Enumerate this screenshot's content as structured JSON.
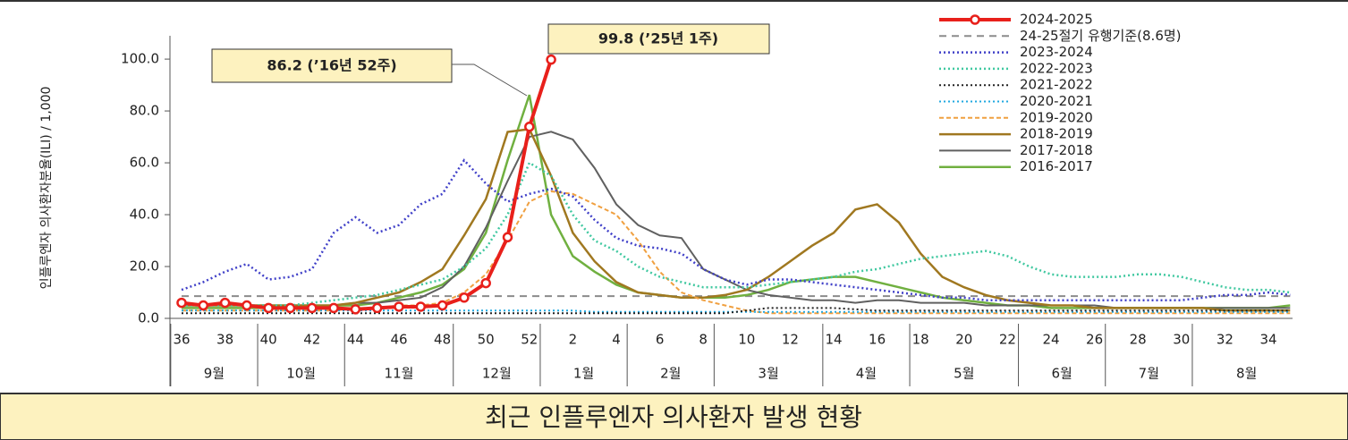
{
  "chart_data": {
    "type": "line",
    "title": "최근 인플루엔자 의사환자 발생 현황",
    "y_label": "인플루엔자 의사환자분율(ILI) / 1,000",
    "categories": [
      "36",
      null,
      "38",
      null,
      "40",
      null,
      "42",
      null,
      "44",
      null,
      "46",
      null,
      "48",
      null,
      "50",
      null,
      "52",
      null,
      "2",
      null,
      "4",
      null,
      "6",
      null,
      "8",
      null,
      "10",
      null,
      "12",
      null,
      "14",
      null,
      "16",
      null,
      "18",
      null,
      "20",
      null,
      "22",
      null,
      "24",
      null,
      "26",
      null,
      "28",
      null,
      "30",
      null,
      "32",
      null,
      "34",
      null
    ],
    "months": [
      "9월",
      "10월",
      "11월",
      "12월",
      "1월",
      "2월",
      "3월",
      "4월",
      "5월",
      "6월",
      "7월",
      "8월"
    ],
    "ylim": [
      0,
      109
    ],
    "yticks": [
      {
        "value": 0,
        "label": "0.0"
      },
      {
        "value": 20,
        "label": "20.0"
      },
      {
        "value": 40,
        "label": "40.0"
      },
      {
        "value": 60,
        "label": "60.0"
      },
      {
        "value": 80,
        "label": "80.0"
      },
      {
        "value": 100,
        "label": "100.0"
      }
    ],
    "threshold": {
      "name": "24-25절기 유행기준(8.6명)",
      "value": 8.6,
      "color": "#8c8c8c"
    },
    "annotations": [
      "86.2 (’16년 52주)",
      "99.8 (’25년 1주)"
    ],
    "series": [
      {
        "name": "2024-2025",
        "color": "#e8201b",
        "style": "solid",
        "width": 4,
        "marker": true,
        "values": [
          6,
          5,
          6,
          5,
          4,
          4,
          4,
          4,
          3.5,
          4,
          4.5,
          4.5,
          5,
          8,
          13.6,
          31.3,
          73.9,
          99.8,
          null,
          null,
          null,
          null,
          null,
          null,
          null,
          null,
          null,
          null,
          null,
          null,
          null,
          null,
          null,
          null,
          null,
          null,
          null,
          null,
          null,
          null,
          null,
          null,
          null,
          null,
          null,
          null,
          null,
          null,
          null,
          null,
          null,
          null
        ]
      },
      {
        "name": "2023-2024",
        "color": "#4040c8",
        "style": "dotted",
        "width": 2.5,
        "values": [
          11,
          14,
          18,
          21,
          15,
          16,
          19,
          33,
          39,
          33,
          36,
          44,
          48,
          61,
          52,
          45,
          48,
          50,
          47,
          38,
          31,
          28,
          27,
          25,
          19,
          15,
          13,
          15,
          15,
          14,
          13,
          12,
          11,
          10,
          9,
          8,
          8,
          7,
          7,
          7,
          7,
          7,
          7,
          7,
          7,
          7,
          7,
          8,
          9,
          9,
          10,
          9
        ]
      },
      {
        "name": "2022-2023",
        "color": "#40c8a0",
        "style": "dotted",
        "width": 2.5,
        "values": [
          5,
          5,
          5,
          5,
          5,
          5,
          6,
          7,
          8,
          9,
          11,
          13,
          15,
          20,
          27,
          40,
          60,
          55,
          40,
          30,
          26,
          20,
          16,
          14,
          12,
          12,
          12,
          13,
          14,
          15,
          16,
          18,
          19,
          21,
          23,
          24,
          25,
          26,
          24,
          20,
          17,
          16,
          16,
          16,
          17,
          17,
          16,
          14,
          12,
          11,
          11,
          10
        ]
      },
      {
        "name": "2021-2022",
        "color": "#222222",
        "style": "dotted",
        "width": 2,
        "values": [
          2,
          2,
          2,
          2,
          2,
          2,
          2,
          2,
          2,
          2,
          2,
          2,
          2,
          2,
          2,
          2,
          2,
          2,
          2,
          2,
          2,
          2,
          2,
          2,
          2,
          2,
          3,
          4,
          4,
          4,
          4,
          3.5,
          3,
          3,
          3,
          3,
          3,
          3,
          3,
          3,
          3,
          3,
          3,
          3,
          3,
          3,
          3,
          3,
          3,
          3,
          3,
          3
        ]
      },
      {
        "name": "2020-2021",
        "color": "#20a8e0",
        "style": "dotted",
        "width": 2,
        "values": [
          3,
          3,
          3,
          3,
          3,
          3,
          3,
          3,
          3,
          3,
          3,
          3,
          3,
          3,
          3,
          3,
          3,
          3,
          3,
          2.5,
          2.5,
          2.5,
          2.5,
          2.5,
          2.5,
          2.5,
          2.5,
          2.5,
          2.5,
          2.5,
          2.5,
          2.5,
          2.5,
          2.5,
          2.5,
          2.5,
          2.5,
          2.5,
          2.5,
          2.5,
          2.5,
          2.5,
          2.5,
          2.5,
          2.5,
          2.5,
          2.5,
          2.5,
          2.5,
          2.5,
          2.5,
          2.5
        ]
      },
      {
        "name": "2019-2020",
        "color": "#f0a040",
        "style": "dashed",
        "width": 2,
        "values": [
          3,
          3,
          3,
          3,
          3,
          3,
          3,
          3,
          4,
          4,
          5,
          5,
          6,
          10,
          17,
          30,
          45,
          49,
          48,
          44,
          40,
          30,
          18,
          10,
          7,
          5,
          3,
          2,
          2,
          2,
          2,
          2,
          2,
          2,
          2,
          2,
          2,
          2,
          2,
          2,
          2,
          2,
          2,
          2,
          2,
          2,
          2,
          2,
          2,
          2,
          2,
          2
        ]
      },
      {
        "name": "2018-2019",
        "color": "#a07820",
        "style": "solid",
        "width": 2.5,
        "values": [
          5,
          5,
          5,
          5,
          5,
          5,
          5,
          5,
          6,
          8,
          10,
          14,
          19,
          32,
          46,
          71.9,
          73,
          55,
          33,
          22,
          14,
          10,
          9,
          8,
          8,
          9,
          11,
          16,
          22,
          28,
          33,
          42,
          44,
          37,
          25,
          16,
          12,
          9,
          7,
          6,
          5,
          5,
          4,
          4,
          4,
          4,
          4,
          4,
          3,
          3,
          3,
          3
        ]
      },
      {
        "name": "2017-2018",
        "color": "#606060",
        "style": "solid",
        "width": 2,
        "values": [
          5,
          5,
          5,
          5,
          5,
          5,
          5,
          5,
          6,
          6,
          7,
          8,
          12,
          20,
          35,
          53,
          70,
          72,
          69,
          58,
          44,
          36,
          32,
          31,
          19,
          15,
          11,
          9,
          8,
          7,
          7,
          6,
          7,
          7,
          6,
          6,
          6,
          5,
          5,
          5,
          5,
          5,
          5,
          4,
          4,
          4,
          4,
          4,
          4,
          4,
          4,
          4
        ]
      },
      {
        "name": "2016-2017",
        "color": "#70b040",
        "style": "solid",
        "width": 2.5,
        "values": [
          4,
          4,
          4,
          4,
          4,
          4,
          4,
          5,
          5,
          6,
          8,
          10,
          13,
          19,
          33,
          61,
          86.2,
          40,
          24,
          18,
          13,
          10,
          9,
          8,
          8,
          8,
          9,
          11,
          14,
          15,
          16,
          16,
          14,
          12,
          10,
          8,
          7,
          6,
          5,
          5,
          4,
          4,
          4,
          4,
          4,
          4,
          4,
          4,
          4,
          4,
          4,
          5
        ]
      }
    ]
  }
}
